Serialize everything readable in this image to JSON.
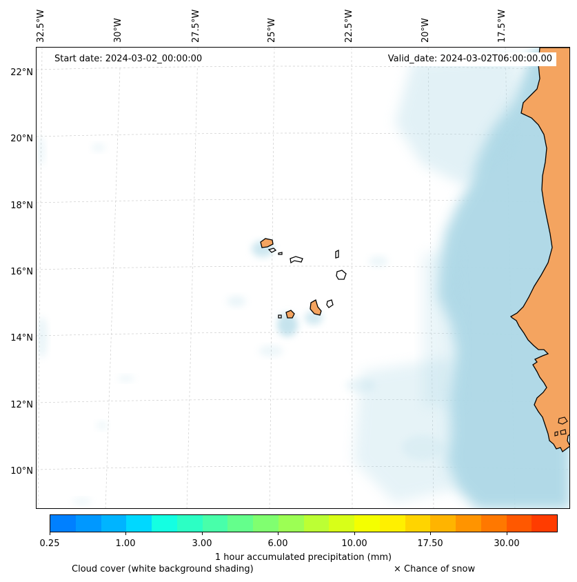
{
  "header": {
    "start_date": "Start date: 2024-03-02_00:00:00",
    "valid_date": "Valid_date: 2024-03-02T06:00:00.00"
  },
  "map": {
    "lon_labels": [
      "32.5°W",
      "30°W",
      "27.5°W",
      "25°W",
      "22.5°W",
      "20°W",
      "17.5°W"
    ],
    "lat_labels": [
      "22°N",
      "20°N",
      "18°N",
      "16°N",
      "14°N",
      "12°N",
      "10°N"
    ],
    "colors": {
      "land": "#f4a460",
      "cloud": "#add8e6",
      "coastline": "#000000",
      "gridline": "#cccccc"
    }
  },
  "colorbar": {
    "colors": [
      "#0080ff",
      "#0098ff",
      "#00b4ff",
      "#00d8ff",
      "#14ffe2",
      "#2cffc4",
      "#48ffaa",
      "#64ff8c",
      "#80ff70",
      "#9cff54",
      "#bcff34",
      "#d8ff18",
      "#f4ff00",
      "#fff000",
      "#ffd400",
      "#ffb400",
      "#ff9400",
      "#ff7800",
      "#ff5800",
      "#ff3c00"
    ],
    "tick_labels": [
      "0.25",
      "1.00",
      "3.00",
      "6.00",
      "10.00",
      "17.50",
      "30.00"
    ],
    "label": "1 hour accumulated precipitation (mm)"
  },
  "legend": {
    "cloud_note": "Cloud cover (white background shading)",
    "snow_note": "× Chance of snow"
  }
}
